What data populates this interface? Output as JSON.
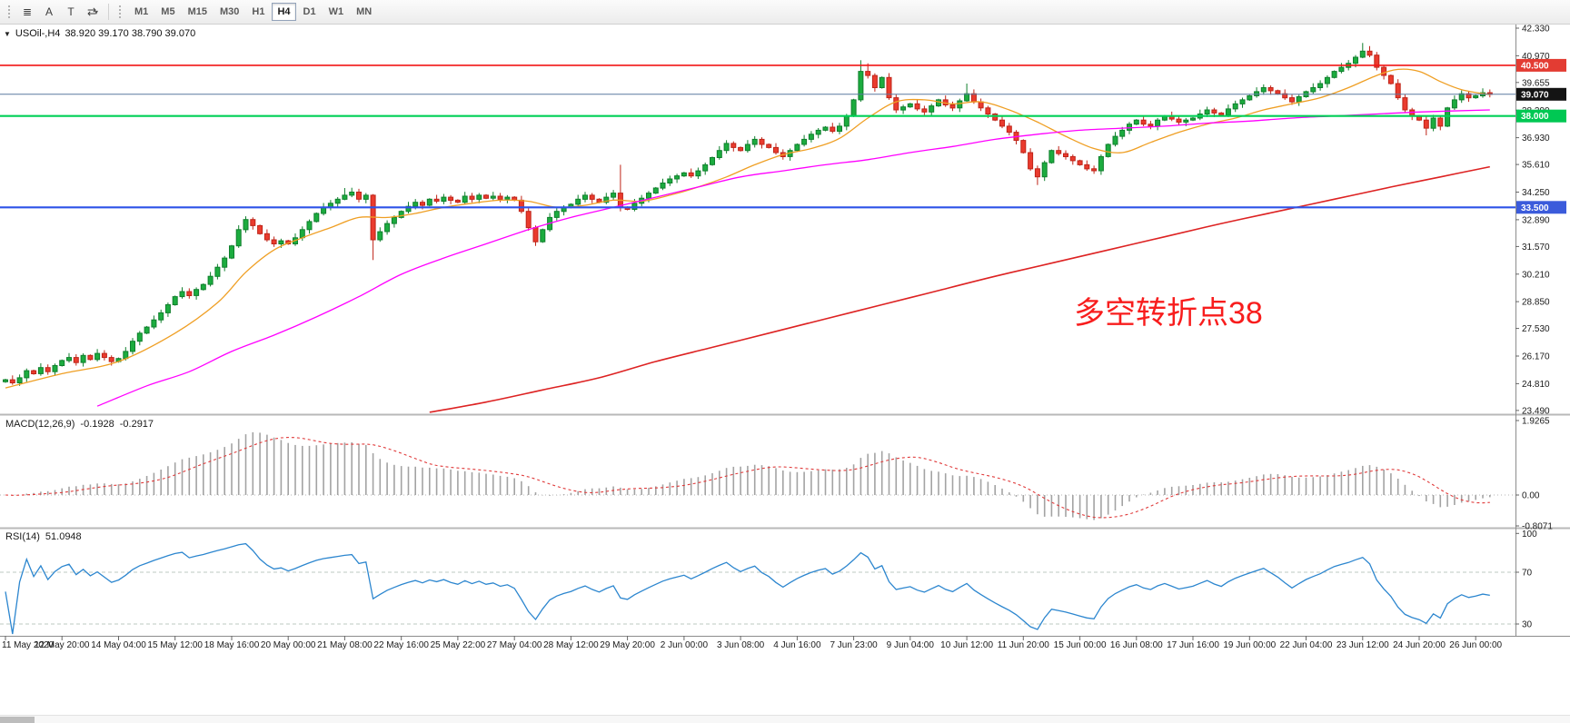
{
  "toolbar": {
    "tools": [
      {
        "name": "line-studies-icon",
        "glyph": "≣"
      },
      {
        "name": "text-label-icon",
        "glyph": "A"
      },
      {
        "name": "text-frame-icon",
        "glyph": "T"
      },
      {
        "name": "arrow-objects-icon",
        "glyph": "⇄"
      }
    ],
    "dropdown_caret": "▾",
    "timeframes": [
      "M1",
      "M5",
      "M15",
      "M30",
      "H1",
      "H4",
      "D1",
      "W1",
      "MN"
    ],
    "active_timeframe": "H4"
  },
  "chart": {
    "symbol_label": "USOil-,H4",
    "ohlc_label": "38.920 39.170 38.790 39.070",
    "collapse_glyph": "▼",
    "annotation": {
      "text": "多空转折点38",
      "color": "#f81d1d"
    },
    "price_axis_labels": [
      "42.330",
      "40.970",
      "39.655",
      "38.290",
      "36.930",
      "35.610",
      "34.250",
      "32.890",
      "31.570",
      "30.210",
      "28.850",
      "27.530",
      "26.170",
      "24.810",
      "23.490"
    ],
    "badges": [
      {
        "label": "40.500",
        "price": 40.5,
        "bg": "#e33c33"
      },
      {
        "label": "39.070",
        "price": 39.07,
        "bg": "#141414"
      },
      {
        "label": "38.000",
        "price": 38.0,
        "bg": "#00c853"
      },
      {
        "label": "33.500",
        "price": 33.5,
        "bg": "#3b5bdb"
      }
    ],
    "hlines": [
      {
        "price": 40.5,
        "color": "#f21616",
        "width": 1.6
      },
      {
        "price": 39.07,
        "color": "#5a78a0",
        "width": 1
      },
      {
        "price": 38.0,
        "color": "#00d057",
        "width": 2.2
      },
      {
        "price": 33.5,
        "color": "#2d53e8",
        "width": 2.2
      }
    ],
    "colors": {
      "up": "#1cac3f",
      "up_border": "#0f7f2c",
      "down": "#ea3b2e",
      "down_border": "#bf2418",
      "macd_hist": "#a3a3a3",
      "macd_signal": "#e03a3a",
      "rsi_line": "#2c86cf",
      "axis_text": "#1a1a1a"
    }
  },
  "chart_data": {
    "type": "candlestick",
    "symbol": "USOil",
    "timeframe": "H4",
    "price_range": [
      23.35,
      42.51
    ],
    "first_open": 24.9,
    "closes": [
      25.0,
      24.85,
      25.1,
      25.45,
      25.3,
      25.6,
      25.4,
      25.7,
      25.95,
      26.1,
      25.85,
      26.2,
      26.0,
      26.3,
      26.1,
      25.9,
      26.05,
      26.4,
      26.9,
      27.3,
      27.6,
      27.95,
      28.3,
      28.7,
      29.1,
      29.35,
      29.15,
      29.45,
      29.7,
      30.1,
      30.55,
      31.0,
      31.6,
      32.4,
      32.9,
      32.6,
      32.2,
      31.9,
      31.7,
      31.85,
      31.7,
      32.0,
      32.4,
      32.8,
      33.2,
      33.5,
      33.7,
      33.9,
      34.1,
      34.25,
      33.9,
      34.1,
      31.9,
      32.3,
      32.7,
      33.0,
      33.3,
      33.55,
      33.75,
      33.6,
      33.9,
      33.8,
      34.0,
      33.85,
      33.75,
      34.05,
      33.9,
      34.1,
      33.95,
      34.05,
      33.9,
      34.0,
      33.85,
      33.3,
      32.5,
      31.8,
      32.4,
      33.0,
      33.3,
      33.5,
      33.65,
      33.9,
      34.1,
      33.9,
      33.75,
      34.0,
      34.2,
      33.5,
      33.4,
      33.7,
      33.95,
      34.2,
      34.45,
      34.7,
      34.9,
      35.05,
      35.2,
      35.05,
      35.3,
      35.6,
      35.95,
      36.3,
      36.65,
      36.45,
      36.3,
      36.6,
      36.85,
      36.6,
      36.45,
      36.2,
      36.0,
      36.3,
      36.6,
      36.85,
      37.1,
      37.3,
      37.45,
      37.25,
      37.5,
      38.0,
      38.8,
      40.2,
      40.0,
      39.4,
      39.9,
      38.9,
      38.3,
      38.45,
      38.6,
      38.35,
      38.2,
      38.5,
      38.8,
      38.55,
      38.4,
      38.75,
      39.1,
      38.7,
      38.4,
      38.1,
      37.8,
      37.5,
      37.2,
      36.8,
      36.2,
      35.4,
      35.0,
      35.7,
      36.3,
      36.15,
      36.0,
      35.8,
      35.6,
      35.4,
      35.3,
      36.0,
      36.6,
      37.0,
      37.3,
      37.6,
      37.8,
      37.6,
      37.5,
      37.8,
      38.0,
      37.85,
      37.7,
      37.8,
      37.9,
      38.1,
      38.3,
      38.15,
      38.05,
      38.35,
      38.6,
      38.8,
      39.0,
      39.2,
      39.4,
      39.25,
      39.1,
      38.9,
      38.7,
      38.95,
      39.2,
      39.4,
      39.6,
      39.9,
      40.2,
      40.4,
      40.6,
      40.9,
      41.2,
      41.0,
      40.4,
      40.0,
      39.6,
      38.9,
      38.3,
      38.0,
      37.8,
      37.4,
      37.9,
      37.5,
      38.4,
      38.8,
      39.1,
      38.9,
      39.0,
      39.15,
      39.07
    ],
    "extremes": {
      "48": {
        "high": 34.45
      },
      "52": {
        "low": 30.9
      },
      "87": {
        "high": 35.6
      },
      "121": {
        "high": 40.75
      },
      "122": {
        "high": 40.6
      },
      "136": {
        "high": 39.6
      },
      "146": {
        "low": 34.6
      },
      "192": {
        "high": 41.6
      },
      "193": {
        "high": 41.45
      },
      "201": {
        "low": 37.05
      }
    },
    "moving_averages": [
      {
        "name": "ma-fast-orange",
        "color": "#ef9f24",
        "width": 1.3,
        "anchors": [
          [
            0,
            24.6
          ],
          [
            8,
            25.3
          ],
          [
            16,
            25.9
          ],
          [
            24,
            27.3
          ],
          [
            30,
            28.8
          ],
          [
            34,
            30.3
          ],
          [
            38,
            31.4
          ],
          [
            42,
            32.0
          ],
          [
            46,
            32.5
          ],
          [
            50,
            33.0
          ],
          [
            54,
            33.0
          ],
          [
            58,
            33.2
          ],
          [
            62,
            33.5
          ],
          [
            66,
            33.7
          ],
          [
            70,
            33.85
          ],
          [
            74,
            33.8
          ],
          [
            78,
            33.5
          ],
          [
            82,
            33.6
          ],
          [
            86,
            33.85
          ],
          [
            90,
            33.8
          ],
          [
            94,
            34.1
          ],
          [
            98,
            34.5
          ],
          [
            102,
            35.0
          ],
          [
            106,
            35.6
          ],
          [
            110,
            36.1
          ],
          [
            114,
            36.4
          ],
          [
            118,
            36.9
          ],
          [
            122,
            37.9
          ],
          [
            126,
            38.7
          ],
          [
            130,
            38.8
          ],
          [
            134,
            38.6
          ],
          [
            138,
            38.7
          ],
          [
            142,
            38.3
          ],
          [
            146,
            37.7
          ],
          [
            150,
            37.0
          ],
          [
            154,
            36.4
          ],
          [
            158,
            36.2
          ],
          [
            162,
            36.7
          ],
          [
            166,
            37.2
          ],
          [
            170,
            37.6
          ],
          [
            174,
            37.9
          ],
          [
            178,
            38.3
          ],
          [
            182,
            38.6
          ],
          [
            186,
            38.9
          ],
          [
            190,
            39.4
          ],
          [
            194,
            40.0
          ],
          [
            197,
            40.3
          ],
          [
            200,
            40.2
          ],
          [
            203,
            39.7
          ],
          [
            206,
            39.3
          ],
          [
            210,
            39.05
          ]
        ]
      },
      {
        "name": "ma-medium-magenta",
        "color": "#ff00ff",
        "width": 1.3,
        "anchors": [
          [
            13,
            23.7
          ],
          [
            20,
            24.7
          ],
          [
            26,
            25.4
          ],
          [
            32,
            26.4
          ],
          [
            38,
            27.2
          ],
          [
            44,
            28.1
          ],
          [
            50,
            29.1
          ],
          [
            56,
            30.2
          ],
          [
            62,
            31.0
          ],
          [
            68,
            31.7
          ],
          [
            74,
            32.4
          ],
          [
            80,
            33.0
          ],
          [
            86,
            33.5
          ],
          [
            92,
            34.0
          ],
          [
            98,
            34.5
          ],
          [
            104,
            35.0
          ],
          [
            110,
            35.3
          ],
          [
            116,
            35.6
          ],
          [
            122,
            35.85
          ],
          [
            128,
            36.2
          ],
          [
            134,
            36.5
          ],
          [
            140,
            36.85
          ],
          [
            146,
            37.1
          ],
          [
            152,
            37.3
          ],
          [
            158,
            37.4
          ],
          [
            164,
            37.5
          ],
          [
            170,
            37.65
          ],
          [
            176,
            37.75
          ],
          [
            182,
            37.9
          ],
          [
            188,
            38.0
          ],
          [
            194,
            38.1
          ],
          [
            200,
            38.2
          ],
          [
            210,
            38.3
          ]
        ]
      },
      {
        "name": "ma-slow-red",
        "color": "#dd2222",
        "width": 1.6,
        "anchors": [
          [
            60,
            23.4
          ],
          [
            68,
            23.9
          ],
          [
            76,
            24.5
          ],
          [
            84,
            25.1
          ],
          [
            92,
            25.9
          ],
          [
            100,
            26.6
          ],
          [
            108,
            27.3
          ],
          [
            116,
            28.0
          ],
          [
            124,
            28.7
          ],
          [
            132,
            29.4
          ],
          [
            140,
            30.1
          ],
          [
            148,
            30.75
          ],
          [
            156,
            31.4
          ],
          [
            164,
            32.05
          ],
          [
            172,
            32.7
          ],
          [
            180,
            33.3
          ],
          [
            188,
            33.9
          ],
          [
            196,
            34.5
          ],
          [
            203,
            35.0
          ],
          [
            210,
            35.5
          ]
        ]
      }
    ],
    "indicators": {
      "macd": {
        "label": "MACD(12,26,9)",
        "value_main": "-0.1928",
        "value_signal": "-0.2917",
        "params": [
          12,
          26,
          9
        ],
        "axis_labels": [
          "1.9265",
          "0.00",
          "-0.8071"
        ],
        "range": [
          -0.8071,
          1.9265
        ]
      },
      "rsi": {
        "label": "RSI(14)",
        "value": "51.0948",
        "period": 14,
        "axis_labels": [
          "100",
          "70",
          "30"
        ],
        "levels": [
          70,
          30
        ]
      }
    },
    "date_labels": [
      "11 May 2020",
      "12 May 20:00",
      "14 May 04:00",
      "15 May 12:00",
      "18 May 16:00",
      "20 May 00:00",
      "21 May 08:00",
      "22 May 16:00",
      "25 May 22:00",
      "27 May 04:00",
      "28 May 12:00",
      "29 May 20:00",
      "2 Jun 00:00",
      "3 Jun 08:00",
      "4 Jun 16:00",
      "7 Jun 23:00",
      "9 Jun 04:00",
      "10 Jun 12:00",
      "11 Jun 20:00",
      "15 Jun 00:00",
      "16 Jun 08:00",
      "17 Jun 16:00",
      "19 Jun 00:00",
      "22 Jun 04:00",
      "23 Jun 12:00",
      "24 Jun 20:00",
      "26 Jun 00:00"
    ],
    "label_every_bars": 8
  }
}
